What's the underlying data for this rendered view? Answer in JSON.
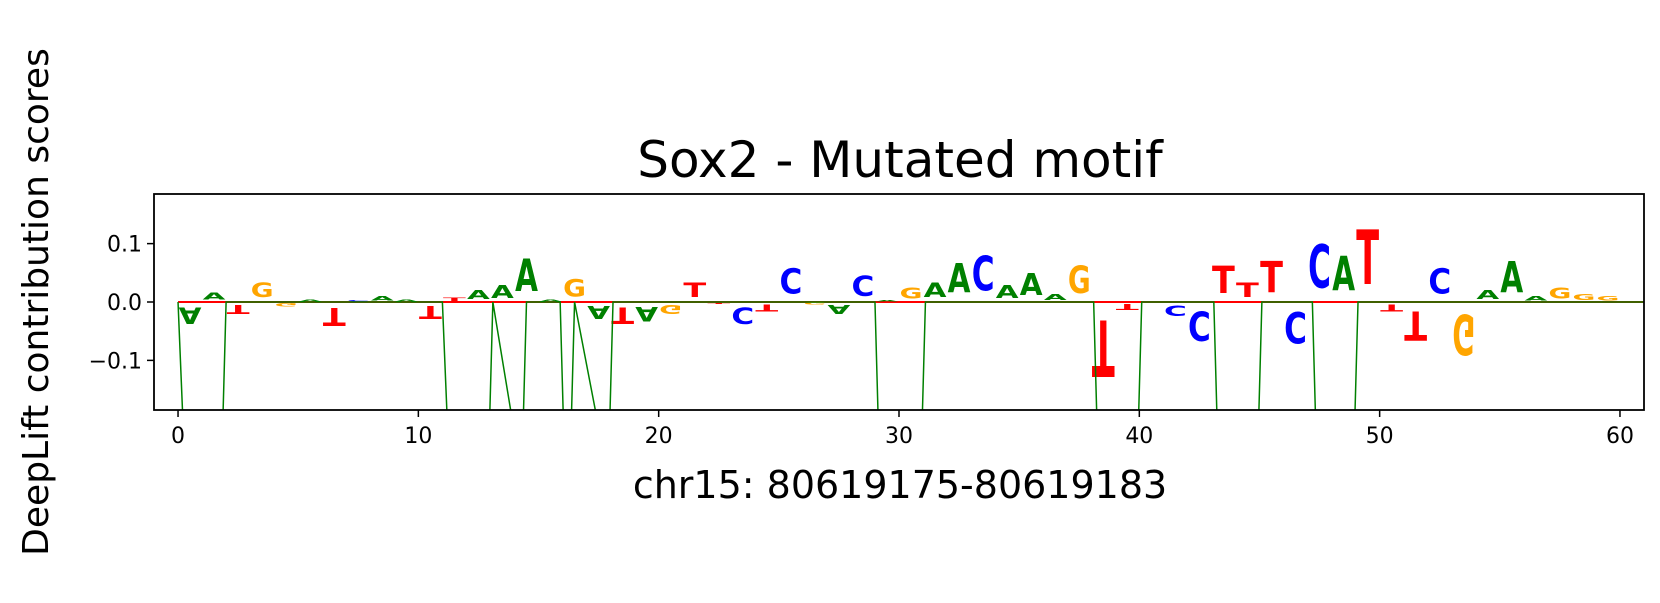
{
  "chart_data": {
    "type": "sequence-logo",
    "title": "Sox2 - Mutated motif",
    "xlabel": "chr15: 80619175-80619183",
    "ylabel": "DeepLift contribution scores",
    "xlim": [
      -1,
      61
    ],
    "ylim": [
      -0.185,
      0.185
    ],
    "xticks": [
      0,
      10,
      20,
      30,
      40,
      50,
      60
    ],
    "yticks": [
      {
        "value": 0.1,
        "label": "0.1"
      },
      {
        "value": 0.0,
        "label": "0.0"
      },
      {
        "value": -0.1,
        "label": "−0.1"
      }
    ],
    "colors": {
      "A": "#008000",
      "C": "#0000ff",
      "G": "#ffa500",
      "T": "#ff0000",
      "line": "#008000",
      "baseline": "#ff0000"
    },
    "letters": [
      {
        "x": 0.5,
        "base": "A",
        "score": -0.045
      },
      {
        "x": 1.5,
        "base": "A",
        "score": 0.02
      },
      {
        "x": 2.5,
        "base": "T",
        "score": -0.025
      },
      {
        "x": 3.5,
        "base": "G",
        "score": 0.04
      },
      {
        "x": 4.5,
        "base": "G",
        "score": -0.008
      },
      {
        "x": 5.5,
        "base": "A",
        "score": 0.005
      },
      {
        "x": 6.5,
        "base": "T",
        "score": -0.05
      },
      {
        "x": 7.5,
        "base": "C",
        "score": 0.004
      },
      {
        "x": 8.5,
        "base": "A",
        "score": 0.012
      },
      {
        "x": 9.5,
        "base": "A",
        "score": 0.006
      },
      {
        "x": 10.5,
        "base": "T",
        "score": -0.035
      },
      {
        "x": 11.5,
        "base": "T",
        "score": 0.008
      },
      {
        "x": 12.5,
        "base": "A",
        "score": 0.025
      },
      {
        "x": 13.5,
        "base": "A",
        "score": 0.035
      },
      {
        "x": 14.5,
        "base": "A",
        "score": 0.09
      },
      {
        "x": 15.5,
        "base": "A",
        "score": 0.005
      },
      {
        "x": 16.5,
        "base": "G",
        "score": 0.048
      },
      {
        "x": 17.5,
        "base": "A",
        "score": -0.035
      },
      {
        "x": 18.5,
        "base": "T",
        "score": -0.045
      },
      {
        "x": 19.5,
        "base": "A",
        "score": -0.04
      },
      {
        "x": 20.5,
        "base": "G",
        "score": -0.025
      },
      {
        "x": 21.5,
        "base": "T",
        "score": 0.04
      },
      {
        "x": 22.5,
        "base": "T",
        "score": -0.003
      },
      {
        "x": 23.5,
        "base": "C",
        "score": -0.045
      },
      {
        "x": 24.5,
        "base": "T",
        "score": -0.02
      },
      {
        "x": 25.5,
        "base": "C",
        "score": 0.07
      },
      {
        "x": 26.5,
        "base": "G",
        "score": -0.006
      },
      {
        "x": 27.5,
        "base": "A",
        "score": -0.025
      },
      {
        "x": 28.5,
        "base": "C",
        "score": 0.055
      },
      {
        "x": 29.5,
        "base": "A",
        "score": 0.004
      },
      {
        "x": 30.5,
        "base": "G",
        "score": 0.03
      },
      {
        "x": 31.5,
        "base": "A",
        "score": 0.04
      },
      {
        "x": 32.5,
        "base": "A",
        "score": 0.08
      },
      {
        "x": 33.5,
        "base": "C",
        "score": 0.095
      },
      {
        "x": 34.5,
        "base": "A",
        "score": 0.035
      },
      {
        "x": 35.5,
        "base": "A",
        "score": 0.06
      },
      {
        "x": 36.5,
        "base": "A",
        "score": 0.015
      },
      {
        "x": 37.5,
        "base": "G",
        "score": 0.075
      },
      {
        "x": 38.5,
        "base": "T",
        "score": -0.155
      },
      {
        "x": 39.5,
        "base": "T",
        "score": -0.015
      },
      {
        "x": 41.5,
        "base": "C",
        "score": -0.028
      },
      {
        "x": 42.5,
        "base": "C",
        "score": -0.08
      },
      {
        "x": 43.5,
        "base": "T",
        "score": 0.075
      },
      {
        "x": 44.5,
        "base": "T",
        "score": 0.04
      },
      {
        "x": 45.5,
        "base": "T",
        "score": 0.085
      },
      {
        "x": 46.5,
        "base": "C",
        "score": -0.085
      },
      {
        "x": 47.5,
        "base": "C",
        "score": 0.12
      },
      {
        "x": 48.5,
        "base": "A",
        "score": 0.095
      },
      {
        "x": 49.5,
        "base": "T",
        "score": 0.15
      },
      {
        "x": 50.5,
        "base": "T",
        "score": -0.02
      },
      {
        "x": 51.5,
        "base": "T",
        "score": -0.08
      },
      {
        "x": 52.5,
        "base": "C",
        "score": 0.07
      },
      {
        "x": 53.5,
        "base": "G",
        "score": -0.11
      },
      {
        "x": 54.5,
        "base": "A",
        "score": 0.025
      },
      {
        "x": 55.5,
        "base": "A",
        "score": 0.085
      },
      {
        "x": 56.5,
        "base": "A",
        "score": 0.012
      },
      {
        "x": 57.5,
        "base": "G",
        "score": 0.03
      },
      {
        "x": 58.5,
        "base": "G",
        "score": 0.015
      },
      {
        "x": 59.5,
        "base": "G",
        "score": 0.013
      }
    ],
    "line": {
      "x": [
        0,
        0.3,
        1.8,
        2,
        11,
        11.3,
        12.9,
        13.1,
        14.3,
        14.5,
        15.9,
        16.1,
        16.3,
        16.5,
        17.9,
        18.1,
        29,
        29.2,
        30.9,
        31.1,
        38.1,
        38.3,
        39.9,
        40.1,
        43.1,
        43.3,
        44.9,
        45.1,
        47.2,
        47.4,
        48.9,
        49.1,
        61
      ],
      "y": [
        0,
        -0.3,
        -0.3,
        0,
        0,
        -0.3,
        -0.3,
        0,
        -0.3,
        0,
        0,
        -0.3,
        -0.3,
        0,
        -0.3,
        0,
        0,
        -0.3,
        -0.3,
        0,
        0,
        -0.3,
        -0.3,
        0,
        0,
        -0.3,
        -0.3,
        0,
        0,
        -0.3,
        -0.3,
        0,
        0
      ]
    }
  }
}
